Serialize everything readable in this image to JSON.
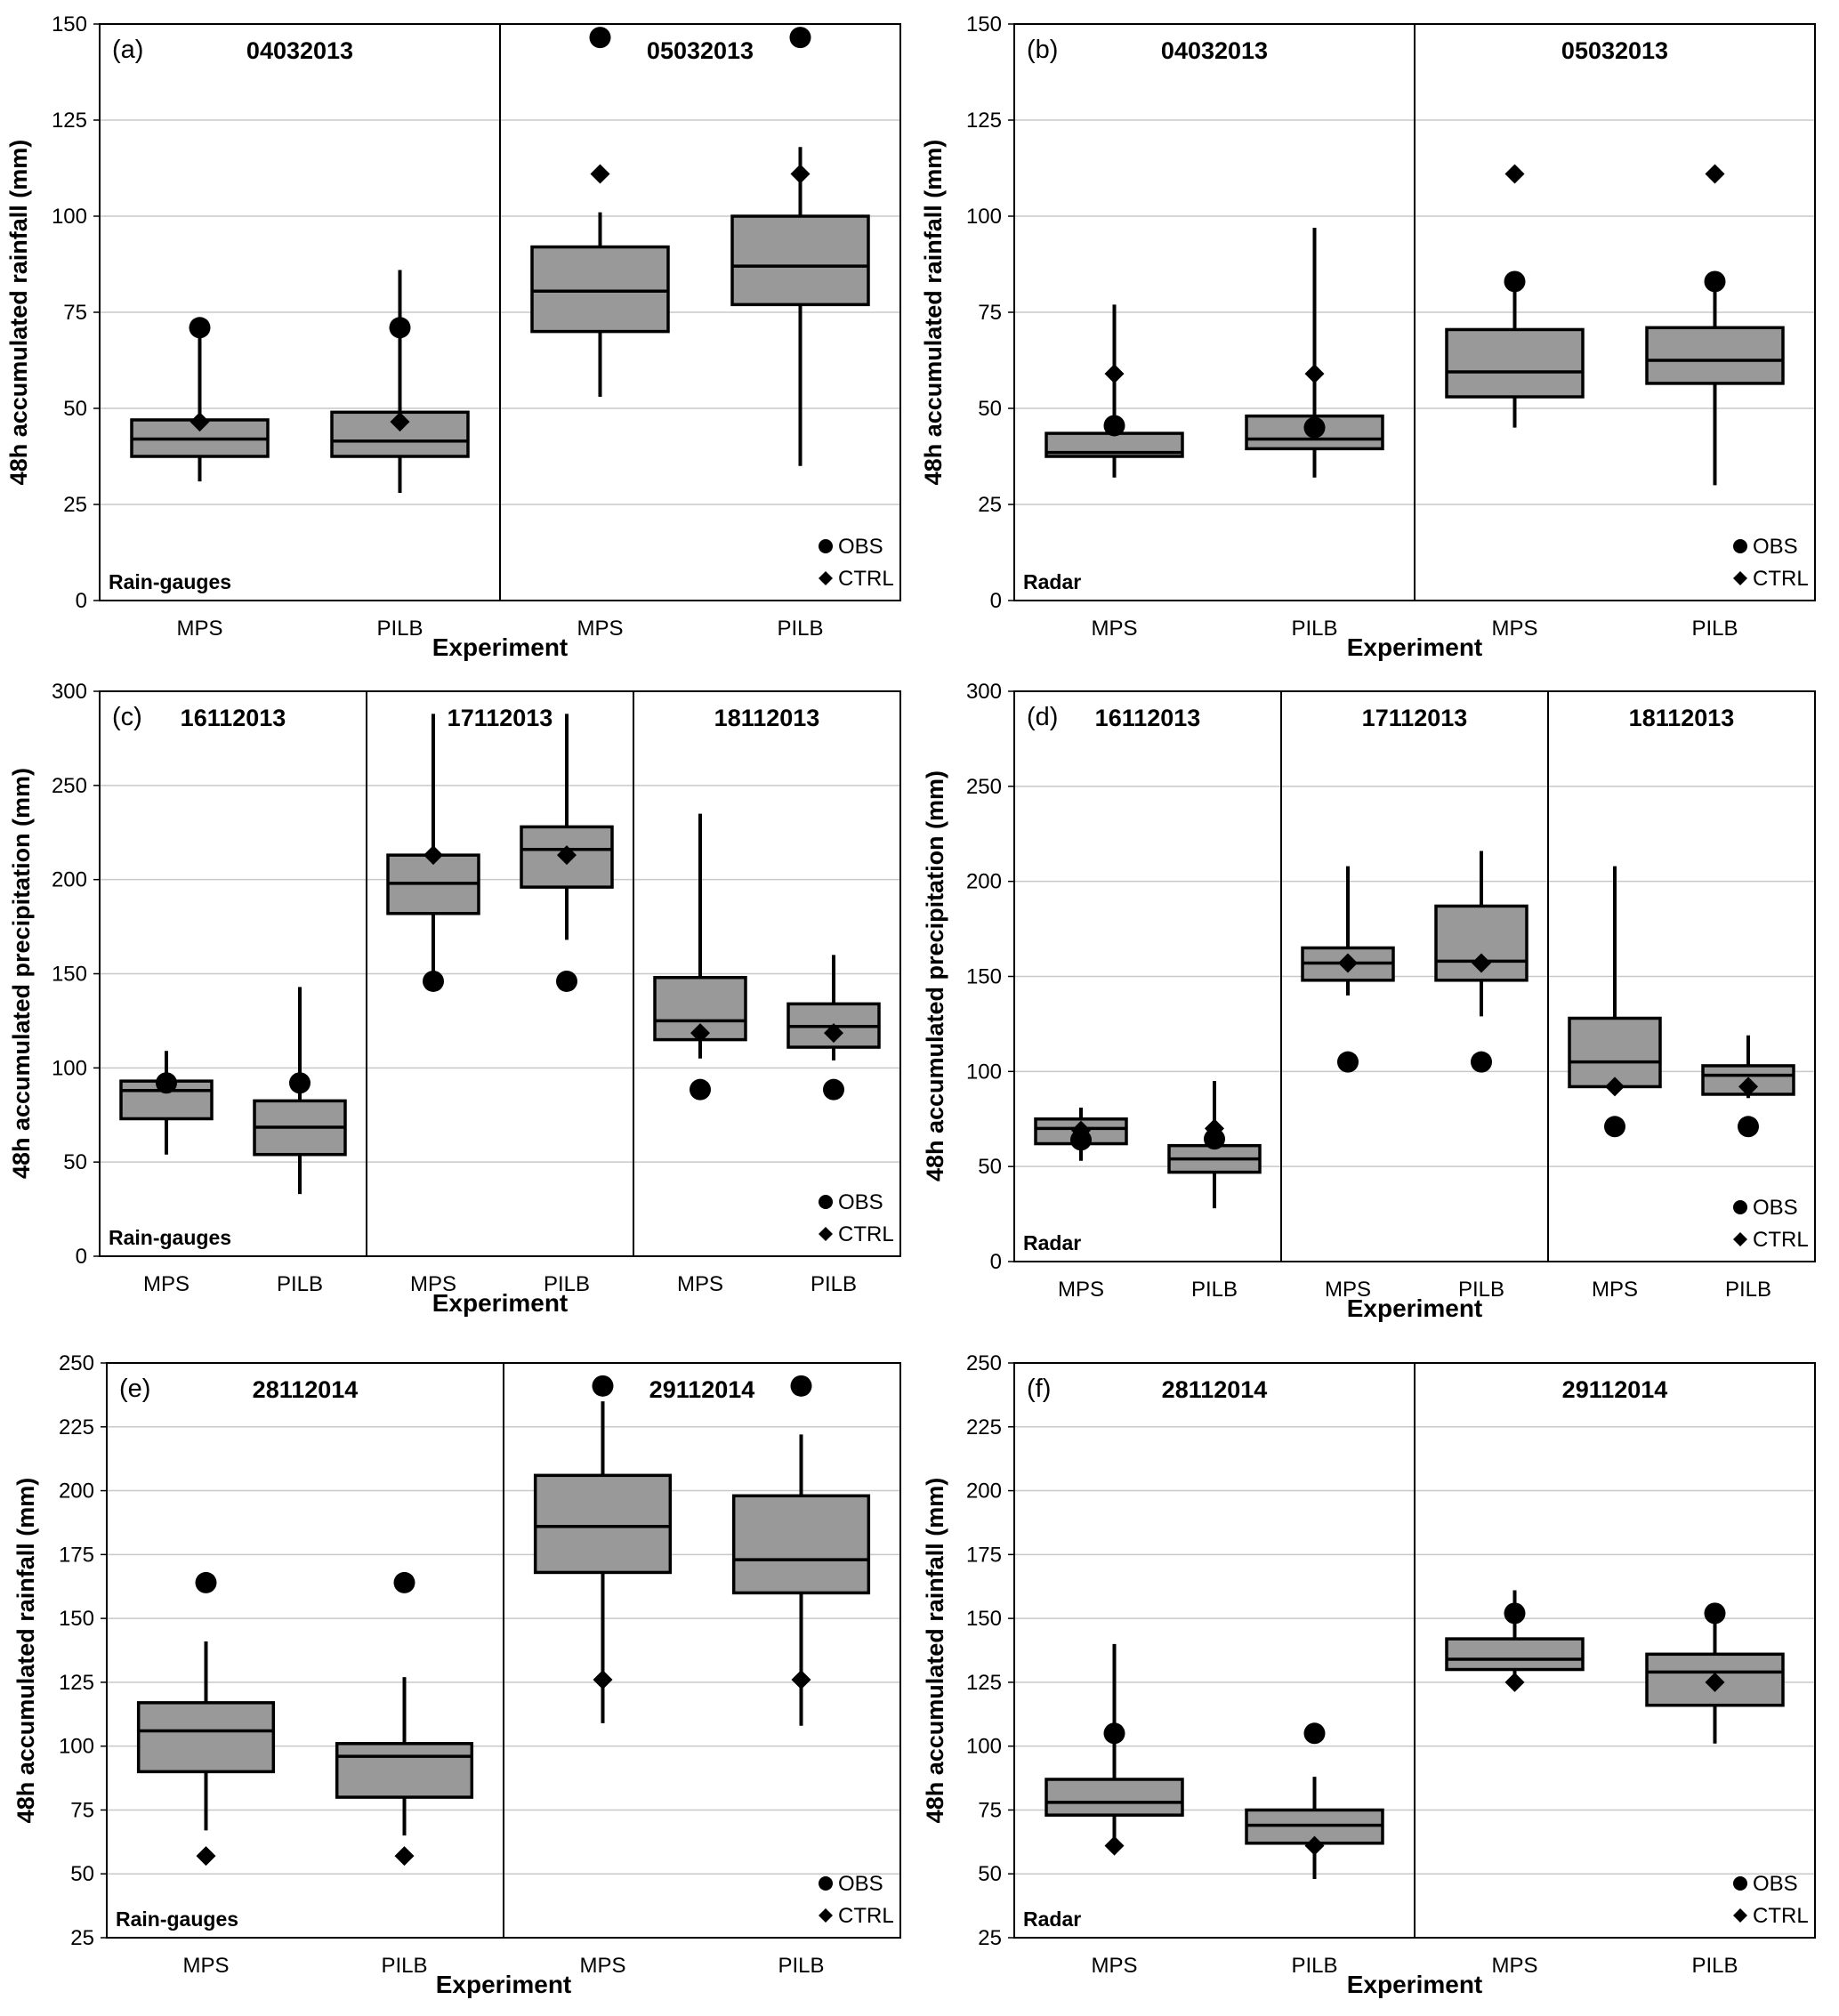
{
  "colors": {
    "box_fill": "#999999",
    "grid": "#c8c8c8",
    "ink": "#000000"
  },
  "legend": {
    "obs_label": "OBS",
    "ctrl_label": "CTRL",
    "obs_marker": "circle",
    "ctrl_marker": "diamond"
  },
  "chart_data": [
    {
      "type": "boxplot",
      "panel_label": "(a)",
      "source_label": "Rain-gauges",
      "ylabel": "48h accumulated rainfall (mm)",
      "xlabel": "Experiment",
      "ylim": [
        0,
        150
      ],
      "yticks": [
        0,
        25,
        50,
        75,
        100,
        125,
        150
      ],
      "groups": [
        {
          "date": "04032013",
          "boxes": [
            {
              "category": "MPS",
              "whisker_low": 31,
              "q1": 37.5,
              "median": 42,
              "q3": 47,
              "whisker_high": 71,
              "obs": 71,
              "ctrl": 46.5
            },
            {
              "category": "PILB",
              "whisker_low": 28,
              "q1": 37.5,
              "median": 41.5,
              "q3": 49,
              "whisker_high": 86,
              "obs": 71,
              "ctrl": 46.5
            }
          ]
        },
        {
          "date": "05032013",
          "boxes": [
            {
              "category": "MPS",
              "whisker_low": 53,
              "q1": 70,
              "median": 80.5,
              "q3": 92,
              "whisker_high": 101,
              "obs": 146.5,
              "ctrl": 111
            },
            {
              "category": "PILB",
              "whisker_low": 35,
              "q1": 77,
              "median": 87,
              "q3": 100,
              "whisker_high": 118,
              "obs": 146.5,
              "ctrl": 111
            }
          ]
        }
      ]
    },
    {
      "type": "boxplot",
      "panel_label": "(b)",
      "source_label": "Radar",
      "ylabel": "48h accumulated rainfall (mm)",
      "xlabel": "Experiment",
      "ylim": [
        0,
        150
      ],
      "yticks": [
        0,
        25,
        50,
        75,
        100,
        125,
        150
      ],
      "groups": [
        {
          "date": "04032013",
          "boxes": [
            {
              "category": "MPS",
              "whisker_low": 32,
              "q1": 37.5,
              "median": 38.5,
              "q3": 43.5,
              "whisker_high": 77,
              "obs": 45.5,
              "ctrl": 59
            },
            {
              "category": "PILB",
              "whisker_low": 32,
              "q1": 39.5,
              "median": 42,
              "q3": 48,
              "whisker_high": 97,
              "obs": 45,
              "ctrl": 59
            }
          ]
        },
        {
          "date": "05032013",
          "boxes": [
            {
              "category": "MPS",
              "whisker_low": 45,
              "q1": 53,
              "median": 59.5,
              "q3": 70.5,
              "whisker_high": 83,
              "obs": 83,
              "ctrl": 111
            },
            {
              "category": "PILB",
              "whisker_low": 30,
              "q1": 56.5,
              "median": 62.5,
              "q3": 71,
              "whisker_high": 83,
              "obs": 83,
              "ctrl": 111
            }
          ]
        }
      ]
    },
    {
      "type": "boxplot",
      "panel_label": "(c)",
      "source_label": "Rain-gauges",
      "ylabel": "48h accumulated precipitation (mm)",
      "xlabel": "Experiment",
      "ylim": [
        0,
        300
      ],
      "yticks": [
        0,
        50,
        100,
        150,
        200,
        250,
        300
      ],
      "groups": [
        {
          "date": "16112013",
          "boxes": [
            {
              "category": "MPS",
              "whisker_low": 54,
              "q1": 73,
              "median": 88,
              "q3": 93,
              "whisker_high": 109,
              "obs": 92,
              "ctrl": 92
            },
            {
              "category": "PILB",
              "whisker_low": 33,
              "q1": 54,
              "median": 68.5,
              "q3": 82.5,
              "whisker_high": 143,
              "obs": 92,
              "ctrl": 92
            }
          ]
        },
        {
          "date": "17112013",
          "boxes": [
            {
              "category": "MPS",
              "whisker_low": 146,
              "q1": 182,
              "median": 198,
              "q3": 213,
              "whisker_high": 288,
              "obs": 146,
              "ctrl": 213
            },
            {
              "category": "PILB",
              "whisker_low": 168,
              "q1": 196,
              "median": 216,
              "q3": 228,
              "whisker_high": 288,
              "obs": 146,
              "ctrl": 213
            }
          ]
        },
        {
          "date": "18112013",
          "boxes": [
            {
              "category": "MPS",
              "whisker_low": 105,
              "q1": 115,
              "median": 125,
              "q3": 148,
              "whisker_high": 235,
              "obs": 88.5,
              "ctrl": 118.5
            },
            {
              "category": "PILB",
              "whisker_low": 104,
              "q1": 111,
              "median": 122,
              "q3": 134,
              "whisker_high": 160,
              "obs": 88.5,
              "ctrl": 118.5
            }
          ]
        }
      ]
    },
    {
      "type": "boxplot",
      "panel_label": "(d)",
      "source_label": "Radar",
      "ylabel": "48h accumulated precipitation (mm)",
      "xlabel": "Experiment",
      "ylim": [
        0,
        300
      ],
      "yticks": [
        0,
        50,
        100,
        150,
        200,
        250,
        300
      ],
      "groups": [
        {
          "date": "16112013",
          "boxes": [
            {
              "category": "MPS",
              "whisker_low": 53,
              "q1": 62,
              "median": 70,
              "q3": 75,
              "whisker_high": 81,
              "obs": 64,
              "ctrl": 69
            },
            {
              "category": "PILB",
              "whisker_low": 28,
              "q1": 47,
              "median": 54,
              "q3": 61,
              "whisker_high": 95,
              "obs": 64.5,
              "ctrl": 70
            }
          ]
        },
        {
          "date": "17112013",
          "boxes": [
            {
              "category": "MPS",
              "whisker_low": 140,
              "q1": 148,
              "median": 157,
              "q3": 165,
              "whisker_high": 208,
              "obs": 105,
              "ctrl": 157
            },
            {
              "category": "PILB",
              "whisker_low": 129,
              "q1": 148,
              "median": 158,
              "q3": 187,
              "whisker_high": 216,
              "obs": 105,
              "ctrl": 157
            }
          ]
        },
        {
          "date": "18112013",
          "boxes": [
            {
              "category": "MPS",
              "whisker_low": 92,
              "q1": 92,
              "median": 105,
              "q3": 128,
              "whisker_high": 208,
              "obs": 71,
              "ctrl": 92
            },
            {
              "category": "PILB",
              "whisker_low": 86,
              "q1": 88,
              "median": 98,
              "q3": 103,
              "whisker_high": 119,
              "obs": 71,
              "ctrl": 92
            }
          ]
        }
      ]
    },
    {
      "type": "boxplot",
      "panel_label": "(e)",
      "source_label": "Rain-gauges",
      "ylabel": "48h accumulated rainfall (mm)",
      "xlabel": "Experiment",
      "ylim": [
        25,
        250
      ],
      "yticks": [
        25,
        50,
        75,
        100,
        125,
        150,
        175,
        200,
        225,
        250
      ],
      "groups": [
        {
          "date": "28112014",
          "boxes": [
            {
              "category": "MPS",
              "whisker_low": 67,
              "q1": 90,
              "median": 106,
              "q3": 117,
              "whisker_high": 141,
              "obs": 164,
              "ctrl": 57
            },
            {
              "category": "PILB",
              "whisker_low": 65,
              "q1": 80,
              "median": 96,
              "q3": 101,
              "whisker_high": 127,
              "obs": 164,
              "ctrl": 57
            }
          ]
        },
        {
          "date": "29112014",
          "boxes": [
            {
              "category": "MPS",
              "whisker_low": 109,
              "q1": 168,
              "median": 186,
              "q3": 206,
              "whisker_high": 235,
              "obs": 241,
              "ctrl": 126
            },
            {
              "category": "PILB",
              "whisker_low": 108,
              "q1": 160,
              "median": 173,
              "q3": 198,
              "whisker_high": 222,
              "obs": 241,
              "ctrl": 126
            }
          ]
        }
      ]
    },
    {
      "type": "boxplot",
      "panel_label": "(f)",
      "source_label": "Radar",
      "ylabel": "48h accumulated rainfall (mm)",
      "xlabel": "Experiment",
      "ylim": [
        25,
        250
      ],
      "yticks": [
        25,
        50,
        75,
        100,
        125,
        150,
        175,
        200,
        225,
        250
      ],
      "groups": [
        {
          "date": "28112014",
          "boxes": [
            {
              "category": "MPS",
              "whisker_low": 62,
              "q1": 73,
              "median": 78,
              "q3": 87,
              "whisker_high": 140,
              "obs": 105,
              "ctrl": 61
            },
            {
              "category": "PILB",
              "whisker_low": 48,
              "q1": 62,
              "median": 69,
              "q3": 75,
              "whisker_high": 88,
              "obs": 105,
              "ctrl": 61
            }
          ]
        },
        {
          "date": "29112014",
          "boxes": [
            {
              "category": "MPS",
              "whisker_low": 122,
              "q1": 130,
              "median": 134,
              "q3": 142,
              "whisker_high": 161,
              "obs": 152,
              "ctrl": 125
            },
            {
              "category": "PILB",
              "whisker_low": 101,
              "q1": 116,
              "median": 129,
              "q3": 136,
              "whisker_high": 152,
              "obs": 152,
              "ctrl": 125
            }
          ]
        }
      ]
    }
  ]
}
